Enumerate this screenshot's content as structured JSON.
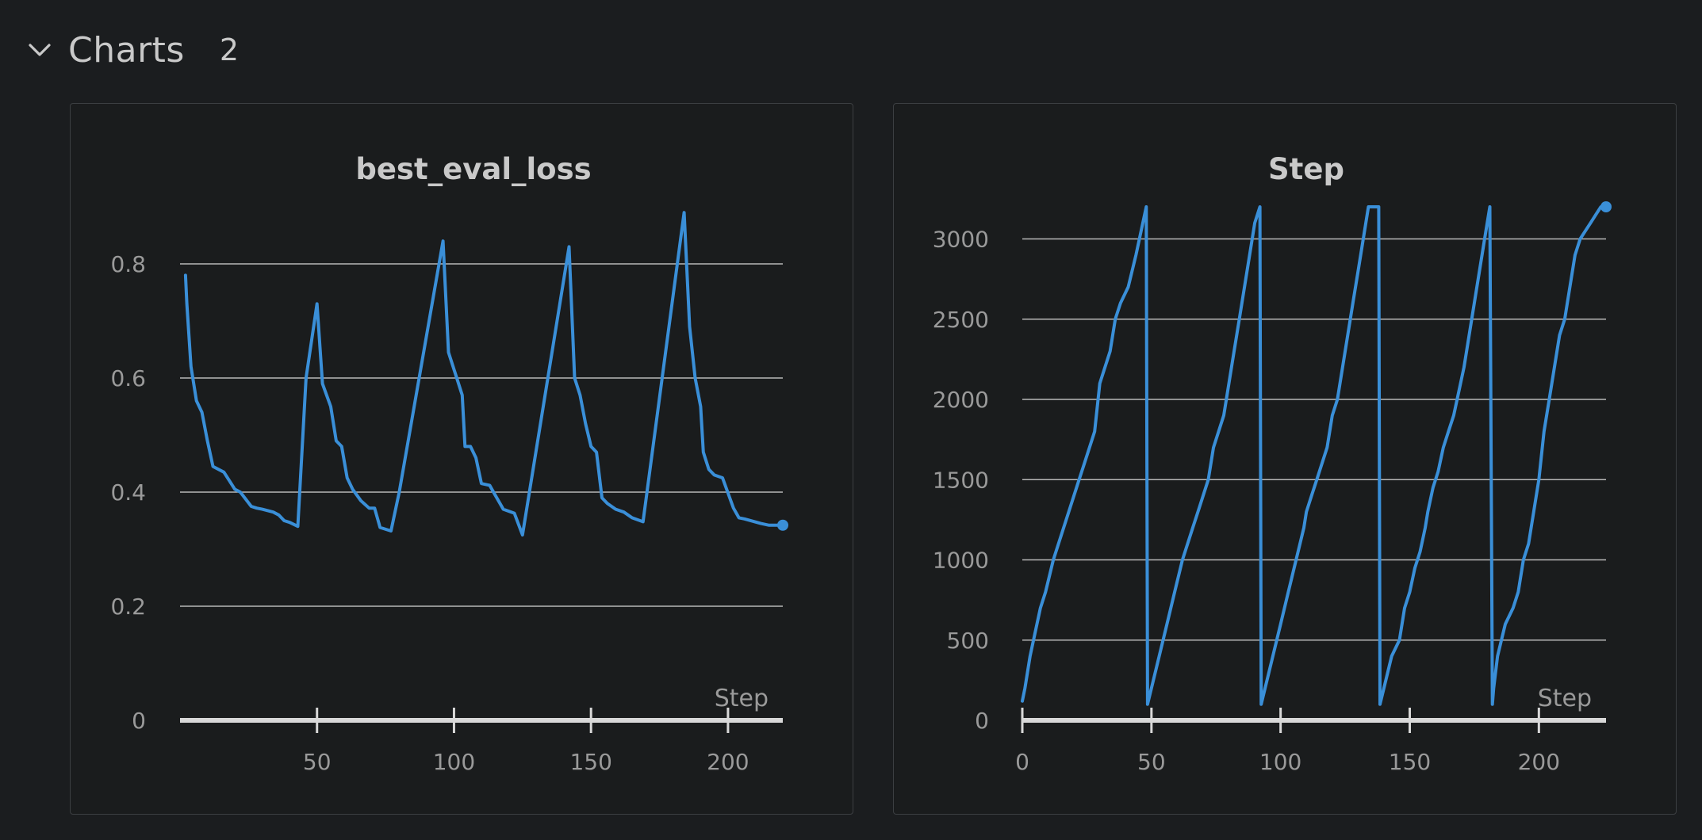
{
  "section": {
    "title": "Charts",
    "count": "2",
    "icon": "chevron-down-icon"
  },
  "colors": {
    "background": "#1b1d1f",
    "panel": "#1a1c1d",
    "series": "#3a8fd8",
    "text": "#c9c9c9"
  },
  "chart_data": [
    {
      "type": "line",
      "title": "best_eval_loss",
      "xlabel": "Step",
      "ylabel": "",
      "xlim": [
        0,
        220
      ],
      "ylim": [
        0,
        0.9
      ],
      "xticks": [
        50,
        100,
        150,
        200
      ],
      "yticks": [
        0,
        0.2,
        0.4,
        0.6,
        0.8
      ],
      "ytick_labels": [
        "0",
        "0.2",
        "0.4",
        "0.6",
        "0.8"
      ],
      "grid": true,
      "x": [
        2,
        2.5,
        4,
        6,
        8,
        10,
        12,
        16,
        18,
        20,
        22,
        26,
        28,
        30,
        34,
        36,
        38,
        40,
        43,
        46,
        50,
        52,
        55,
        57,
        59,
        61,
        63,
        66,
        69,
        71,
        73,
        77,
        80,
        96,
        98,
        101,
        103,
        104,
        106,
        108,
        110,
        113,
        115,
        118,
        122,
        125,
        142,
        144,
        146,
        148,
        150,
        152,
        154,
        156,
        159,
        162,
        165,
        169,
        184,
        186,
        188,
        190,
        191,
        193,
        195,
        198,
        202,
        204,
        206,
        212,
        215,
        217,
        220
      ],
      "y": [
        0.78,
        0.73,
        0.62,
        0.56,
        0.54,
        0.49,
        0.445,
        0.435,
        0.42,
        0.405,
        0.4,
        0.375,
        0.372,
        0.37,
        0.365,
        0.36,
        0.35,
        0.347,
        0.34,
        0.6,
        0.73,
        0.59,
        0.55,
        0.49,
        0.48,
        0.425,
        0.405,
        0.385,
        0.372,
        0.372,
        0.338,
        0.332,
        0.4,
        0.84,
        0.645,
        0.6,
        0.57,
        0.48,
        0.48,
        0.46,
        0.415,
        0.412,
        0.395,
        0.37,
        0.363,
        0.325,
        0.83,
        0.6,
        0.57,
        0.52,
        0.48,
        0.47,
        0.39,
        0.38,
        0.37,
        0.365,
        0.355,
        0.348,
        0.89,
        0.69,
        0.6,
        0.55,
        0.47,
        0.44,
        0.43,
        0.425,
        0.372,
        0.355,
        0.353,
        0.345,
        0.342,
        0.342,
        0.342
      ],
      "endpoint_marker": true
    },
    {
      "type": "line",
      "title": "Step",
      "xlabel": "Step",
      "ylabel": "",
      "xlim": [
        0,
        226
      ],
      "ylim": [
        0,
        3200
      ],
      "xticks": [
        0,
        50,
        100,
        150,
        200
      ],
      "yticks": [
        0,
        500,
        1000,
        1500,
        2000,
        2500,
        3000
      ],
      "ytick_labels": [
        "0",
        "500",
        "1000",
        "1500",
        "2000",
        "2500",
        "3000"
      ],
      "grid": true,
      "x": [
        0,
        1,
        3,
        5,
        7,
        9,
        12,
        14,
        16,
        18,
        20,
        22,
        24,
        26,
        28,
        30,
        32,
        34,
        36,
        38,
        41,
        44,
        48,
        48.5,
        50,
        53,
        56,
        59,
        62,
        64,
        66,
        68,
        70,
        72,
        74,
        76,
        78,
        80,
        82,
        84,
        86,
        88,
        90,
        92,
        92.5,
        94,
        97,
        100,
        103,
        106,
        109,
        110,
        112,
        114,
        116,
        118,
        120,
        122,
        124,
        126,
        128,
        130,
        132,
        134,
        136,
        138,
        138.5,
        140,
        143,
        146,
        148,
        150,
        152,
        154,
        156,
        157,
        159,
        161,
        163,
        165,
        167,
        169,
        171,
        173,
        175,
        177,
        179,
        181,
        182,
        182.5,
        184,
        187,
        190,
        192,
        194,
        196,
        198,
        200,
        202,
        204,
        206,
        208,
        210,
        212,
        214,
        216,
        218,
        220,
        222,
        224,
        226
      ],
      "y": [
        120,
        200,
        400,
        550,
        700,
        800,
        1000,
        1100,
        1200,
        1300,
        1400,
        1500,
        1600,
        1700,
        1800,
        2100,
        2200,
        2300,
        2500,
        2600,
        2700,
        2900,
        3200,
        100,
        200,
        400,
        600,
        800,
        1000,
        1100,
        1200,
        1300,
        1400,
        1500,
        1700,
        1800,
        1900,
        2100,
        2300,
        2500,
        2700,
        2900,
        3100,
        3200,
        100,
        200,
        400,
        600,
        800,
        1000,
        1200,
        1300,
        1400,
        1500,
        1600,
        1700,
        1900,
        2000,
        2200,
        2400,
        2600,
        2800,
        3000,
        3200,
        3200,
        3200,
        100,
        200,
        400,
        500,
        700,
        800,
        950,
        1050,
        1200,
        1300,
        1450,
        1550,
        1700,
        1800,
        1900,
        2050,
        2200,
        2400,
        2600,
        2800,
        3000,
        3200,
        100,
        200,
        400,
        600,
        700,
        800,
        1000,
        1100,
        1300,
        1500,
        1800,
        2000,
        2200,
        2400,
        2500,
        2700,
        2900,
        3000,
        3050,
        3100,
        3150,
        3200,
        3200
      ]
    }
  ]
}
